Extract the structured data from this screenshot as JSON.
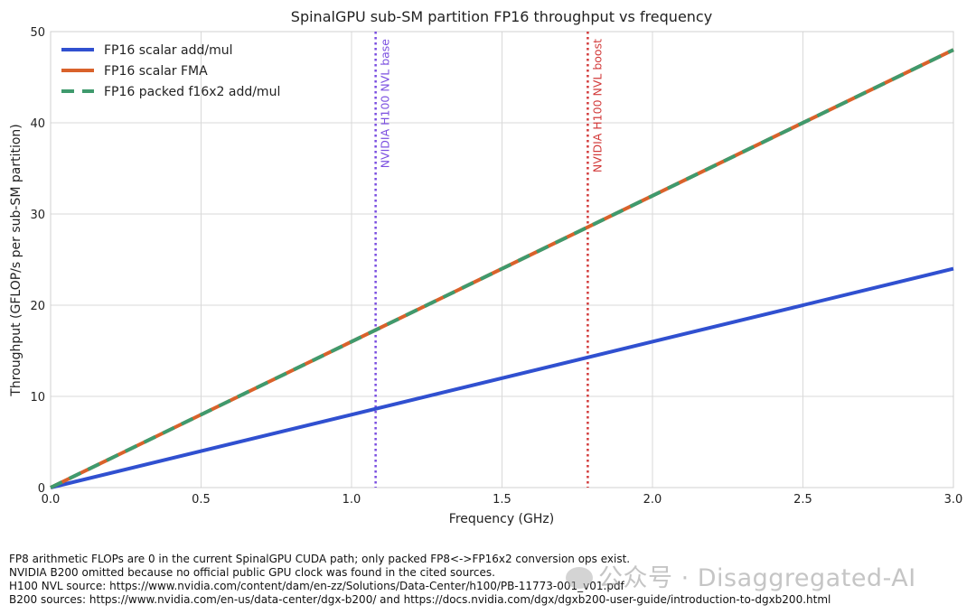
{
  "chart_data": {
    "type": "line",
    "title": "SpinalGPU sub-SM partition FP16 throughput vs frequency",
    "xlabel": "Frequency (GHz)",
    "ylabel": "Throughput (GFLOP/s per sub-SM partition)",
    "xlim": [
      0.0,
      3.0
    ],
    "ylim": [
      0,
      50
    ],
    "xticks": [
      "0.0",
      "0.5",
      "1.0",
      "1.5",
      "2.0",
      "2.5",
      "3.0"
    ],
    "yticks": [
      "0",
      "10",
      "20",
      "30",
      "40",
      "50"
    ],
    "grid": true,
    "legend_position": "top-left",
    "series": [
      {
        "name": "FP16 scalar add/mul",
        "color": "#3050d0",
        "style": "solid",
        "x": [
          0.0,
          3.0
        ],
        "y": [
          0,
          24
        ]
      },
      {
        "name": "FP16 scalar FMA",
        "color": "#d9622b",
        "style": "solid",
        "x": [
          0.0,
          3.0
        ],
        "y": [
          0,
          48
        ]
      },
      {
        "name": "FP16 packed f16x2 add/mul",
        "color": "#3f9a6d",
        "style": "dashed",
        "x": [
          0.0,
          3.0
        ],
        "y": [
          0,
          48
        ]
      }
    ],
    "vlines": [
      {
        "x": 1.08,
        "label": "NVIDIA H100 NVL base",
        "color": "#7b4fe0"
      },
      {
        "x": 1.785,
        "label": "NVIDIA H100 NVL boost",
        "color": "#d23a3a"
      }
    ]
  },
  "notes": [
    "FP8 arithmetic FLOPs are 0 in the current SpinalGPU CUDA path; only packed FP8<->FP16x2 conversion ops exist.",
    "NVIDIA B200 omitted because no official public GPU clock was found in the cited sources.",
    "H100 NVL source: https://www.nvidia.com/content/dam/en-zz/Solutions/Data-Center/h100/PB-11773-001_v01.pdf",
    "B200 sources: https://www.nvidia.com/en-us/data-center/dgx-b200/ and https://docs.nvidia.com/dgx/dgxb200-user-guide/introduction-to-dgxb200.html"
  ],
  "watermark": "公众号 · Disaggregated-AI"
}
